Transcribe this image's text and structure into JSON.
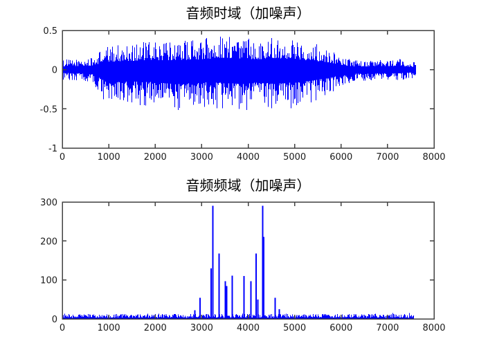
{
  "figure": {
    "background": "#ffffff",
    "axis_color": "#404040",
    "tick_label_color": "#1a1a1a",
    "title_color": "#000000",
    "series_color": "#0000ff"
  },
  "chart_data": [
    {
      "type": "line",
      "kind": "waveform",
      "title": "音频时域（加噪声）",
      "xlabel": "",
      "ylabel": "",
      "xlim": [
        0,
        8000
      ],
      "ylim": [
        -1,
        0.5
      ],
      "xticks": [
        0,
        1000,
        2000,
        3000,
        4000,
        5000,
        6000,
        7000,
        8000
      ],
      "yticks": [
        0.5,
        0,
        -0.5,
        -1
      ],
      "grid": false,
      "legend": "none",
      "data_xmax": 7600,
      "envelope": [
        {
          "x": 0,
          "hi": 0.13,
          "lo": -0.13
        },
        {
          "x": 400,
          "hi": 0.14,
          "lo": -0.14
        },
        {
          "x": 650,
          "hi": 0.15,
          "lo": -0.16
        },
        {
          "x": 850,
          "hi": 0.28,
          "lo": -0.38
        },
        {
          "x": 1000,
          "hi": 0.3,
          "lo": -0.52
        },
        {
          "x": 1300,
          "hi": 0.33,
          "lo": -0.45
        },
        {
          "x": 1800,
          "hi": 0.36,
          "lo": -0.46
        },
        {
          "x": 2300,
          "hi": 0.36,
          "lo": -0.53
        },
        {
          "x": 2600,
          "hi": 0.38,
          "lo": -0.55
        },
        {
          "x": 3000,
          "hi": 0.4,
          "lo": -0.48
        },
        {
          "x": 3400,
          "hi": 0.45,
          "lo": -0.5
        },
        {
          "x": 3800,
          "hi": 0.43,
          "lo": -0.55
        },
        {
          "x": 4200,
          "hi": 0.4,
          "lo": -0.5
        },
        {
          "x": 4600,
          "hi": 0.45,
          "lo": -0.53
        },
        {
          "x": 5000,
          "hi": 0.4,
          "lo": -0.5
        },
        {
          "x": 5400,
          "hi": 0.35,
          "lo": -0.42
        },
        {
          "x": 5700,
          "hi": 0.28,
          "lo": -0.32
        },
        {
          "x": 6000,
          "hi": 0.18,
          "lo": -0.22
        },
        {
          "x": 6300,
          "hi": 0.12,
          "lo": -0.16
        },
        {
          "x": 6800,
          "hi": 0.12,
          "lo": -0.14
        },
        {
          "x": 7200,
          "hi": 0.14,
          "lo": -0.14
        },
        {
          "x": 7600,
          "hi": 0.1,
          "lo": -0.1
        }
      ]
    },
    {
      "type": "line",
      "kind": "spectrum",
      "title": "音频频域（加噪声）",
      "xlabel": "",
      "ylabel": "",
      "xlim": [
        0,
        8000
      ],
      "ylim": [
        0,
        300
      ],
      "xticks": [
        0,
        1000,
        2000,
        3000,
        4000,
        5000,
        6000,
        7000,
        8000
      ],
      "yticks": [
        300,
        200,
        100,
        0
      ],
      "grid": false,
      "legend": "none",
      "data_xmax": 7560,
      "noise_floor": [
        3,
        13
      ],
      "peaks": [
        {
          "x": 2850,
          "v": 22
        },
        {
          "x": 2964,
          "v": 54
        },
        {
          "x": 3203,
          "v": 130
        },
        {
          "x": 3238,
          "v": 290
        },
        {
          "x": 3377,
          "v": 168
        },
        {
          "x": 3506,
          "v": 97
        },
        {
          "x": 3536,
          "v": 84
        },
        {
          "x": 3661,
          "v": 111
        },
        {
          "x": 3909,
          "v": 110
        },
        {
          "x": 4063,
          "v": 97
        },
        {
          "x": 4172,
          "v": 168
        },
        {
          "x": 4206,
          "v": 50
        },
        {
          "x": 4311,
          "v": 290
        },
        {
          "x": 4337,
          "v": 210
        },
        {
          "x": 4584,
          "v": 54
        },
        {
          "x": 4668,
          "v": 25
        }
      ]
    }
  ]
}
